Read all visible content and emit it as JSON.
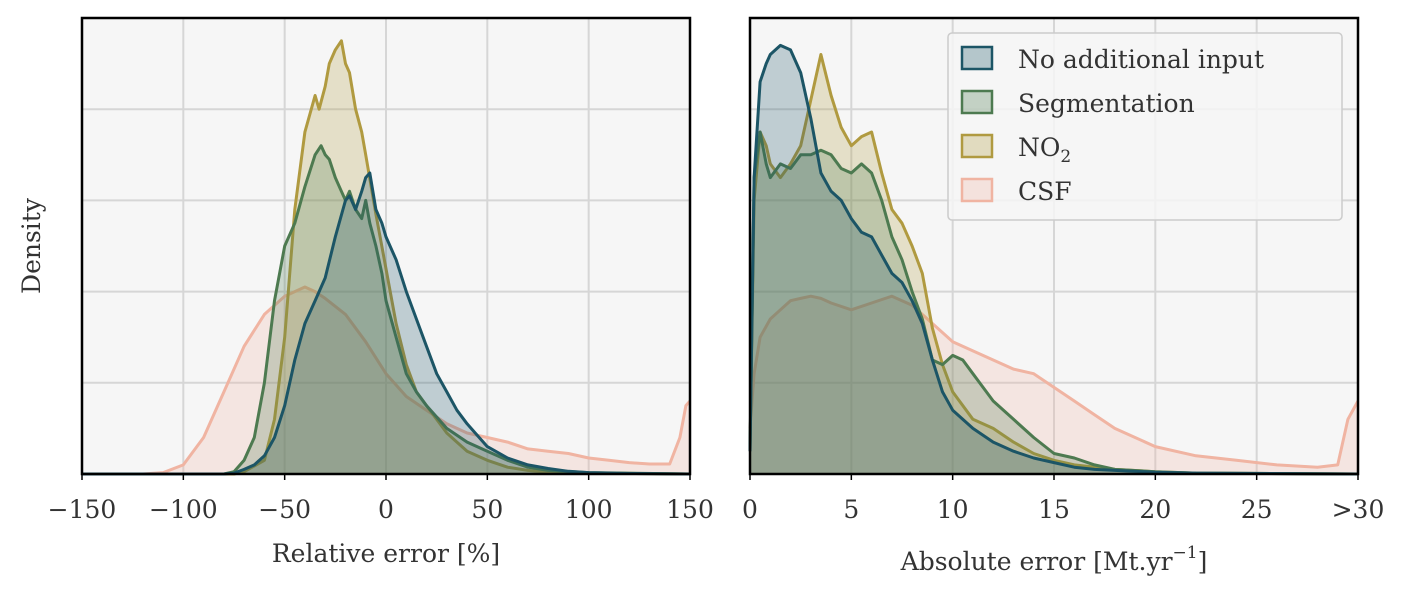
{
  "chart_data": [
    {
      "type": "area",
      "xlabel": "Relative error [%]",
      "ylabel": "Density",
      "xlim": [
        -150,
        150
      ],
      "ylim": [
        0,
        1.0
      ],
      "xticks": [
        -150,
        -100,
        -50,
        0,
        50,
        100,
        150
      ],
      "xtick_labels": [
        "−150",
        "−100",
        "−50",
        "0",
        "50",
        "100",
        "150"
      ],
      "grid": true,
      "series": [
        {
          "key": "csf",
          "color": "#f0b4a2",
          "x": [
            -150,
            -120,
            -110,
            -100,
            -90,
            -80,
            -70,
            -60,
            -50,
            -40,
            -35,
            -30,
            -20,
            -10,
            0,
            10,
            20,
            30,
            40,
            50,
            60,
            70,
            80,
            90,
            100,
            110,
            120,
            130,
            140,
            145,
            148,
            150
          ],
          "y": [
            0,
            0,
            0.003,
            0.02,
            0.08,
            0.18,
            0.28,
            0.35,
            0.39,
            0.41,
            0.4,
            0.385,
            0.35,
            0.29,
            0.22,
            0.17,
            0.14,
            0.11,
            0.09,
            0.08,
            0.07,
            0.055,
            0.05,
            0.045,
            0.035,
            0.03,
            0.025,
            0.022,
            0.022,
            0.08,
            0.15,
            0.16
          ]
        },
        {
          "key": "no2",
          "color": "#b09a40",
          "x": [
            -150,
            -75,
            -70,
            -60,
            -55,
            -50,
            -45,
            -40,
            -35,
            -33,
            -30,
            -28,
            -25,
            -22,
            -20,
            -18,
            -15,
            -12,
            -10,
            -5,
            0,
            5,
            10,
            15,
            20,
            25,
            30,
            35,
            40,
            50,
            60,
            70,
            80,
            100,
            150
          ],
          "y": [
            0,
            0,
            0.005,
            0.03,
            0.12,
            0.3,
            0.58,
            0.75,
            0.83,
            0.8,
            0.85,
            0.9,
            0.93,
            0.95,
            0.9,
            0.88,
            0.8,
            0.75,
            0.7,
            0.57,
            0.45,
            0.33,
            0.24,
            0.18,
            0.15,
            0.12,
            0.09,
            0.07,
            0.05,
            0.03,
            0.015,
            0.008,
            0.004,
            0.002,
            0
          ]
        },
        {
          "key": "seg",
          "color": "#4d7a50",
          "x": [
            -150,
            -80,
            -75,
            -70,
            -65,
            -60,
            -55,
            -50,
            -45,
            -40,
            -35,
            -32,
            -30,
            -28,
            -25,
            -22,
            -20,
            -18,
            -15,
            -12,
            -10,
            -8,
            -5,
            -2,
            0,
            5,
            10,
            15,
            20,
            30,
            40,
            50,
            60,
            70,
            80,
            100,
            150
          ],
          "y": [
            0,
            0,
            0.005,
            0.03,
            0.08,
            0.2,
            0.38,
            0.5,
            0.55,
            0.63,
            0.7,
            0.72,
            0.7,
            0.69,
            0.65,
            0.62,
            0.6,
            0.62,
            0.58,
            0.56,
            0.6,
            0.55,
            0.5,
            0.44,
            0.38,
            0.3,
            0.22,
            0.18,
            0.15,
            0.1,
            0.07,
            0.05,
            0.03,
            0.015,
            0.008,
            0.003,
            0
          ]
        },
        {
          "key": "noinput",
          "color": "#1c5566",
          "x": [
            -150,
            -80,
            -75,
            -70,
            -65,
            -60,
            -55,
            -50,
            -45,
            -40,
            -35,
            -30,
            -25,
            -20,
            -18,
            -15,
            -12,
            -10,
            -8,
            -5,
            -2,
            0,
            5,
            10,
            15,
            20,
            25,
            30,
            35,
            40,
            45,
            50,
            60,
            70,
            80,
            90,
            100,
            120,
            150
          ],
          "y": [
            0,
            0,
            0.002,
            0.01,
            0.02,
            0.04,
            0.08,
            0.15,
            0.25,
            0.33,
            0.38,
            0.43,
            0.52,
            0.6,
            0.61,
            0.58,
            0.62,
            0.65,
            0.66,
            0.58,
            0.55,
            0.52,
            0.47,
            0.4,
            0.34,
            0.28,
            0.22,
            0.18,
            0.14,
            0.11,
            0.085,
            0.06,
            0.035,
            0.02,
            0.012,
            0.006,
            0.003,
            0.001,
            0
          ]
        }
      ]
    },
    {
      "type": "area",
      "xlabel": "Absolute error [Mt.yr",
      "xlabel_sup": "−1",
      "xlabel_suffix": "]",
      "xlim": [
        0,
        30
      ],
      "ylim": [
        0,
        1.0
      ],
      "xticks": [
        0,
        5,
        10,
        15,
        20,
        25,
        30
      ],
      "xtick_labels": [
        "0",
        "5",
        "10",
        "15",
        "20",
        "25",
        ">30"
      ],
      "grid": true,
      "legend_position": "top-right",
      "series": [
        {
          "key": "csf",
          "color": "#f0b4a2",
          "x": [
            0,
            0.2,
            0.5,
            1,
            1.5,
            2,
            2.5,
            3,
            3.5,
            4,
            5,
            6,
            7,
            7.5,
            8,
            9,
            10,
            11,
            12,
            13,
            14,
            15,
            16,
            17,
            18,
            19,
            20,
            22,
            24,
            26,
            28,
            29,
            29.5,
            30
          ],
          "y": [
            0.1,
            0.22,
            0.3,
            0.34,
            0.36,
            0.38,
            0.385,
            0.39,
            0.385,
            0.375,
            0.36,
            0.375,
            0.39,
            0.38,
            0.37,
            0.33,
            0.29,
            0.27,
            0.25,
            0.23,
            0.22,
            0.19,
            0.16,
            0.13,
            0.1,
            0.08,
            0.06,
            0.04,
            0.03,
            0.02,
            0.015,
            0.02,
            0.12,
            0.16
          ]
        },
        {
          "key": "no2",
          "color": "#b09a40",
          "x": [
            0,
            0.2,
            0.5,
            0.8,
            1,
            1.5,
            2,
            2.5,
            3,
            3.5,
            4,
            4.5,
            5,
            5.5,
            6,
            6.5,
            7,
            7.5,
            8,
            8.5,
            9,
            9.5,
            10,
            11,
            12,
            13,
            14,
            15,
            16,
            18,
            20,
            22,
            30
          ],
          "y": [
            0.05,
            0.6,
            0.75,
            0.72,
            0.68,
            0.65,
            0.68,
            0.72,
            0.82,
            0.92,
            0.83,
            0.76,
            0.72,
            0.74,
            0.75,
            0.66,
            0.58,
            0.55,
            0.5,
            0.44,
            0.32,
            0.24,
            0.18,
            0.12,
            0.1,
            0.07,
            0.045,
            0.03,
            0.02,
            0.01,
            0.005,
            0.002,
            0
          ]
        },
        {
          "key": "seg",
          "color": "#4d7a50",
          "x": [
            0,
            0.2,
            0.5,
            0.8,
            1,
            1.5,
            2,
            2.5,
            3,
            3.5,
            4,
            4.5,
            5,
            5.5,
            6,
            6.5,
            7,
            7.5,
            8,
            8.5,
            9,
            9.5,
            10,
            10.5,
            11,
            12,
            13,
            14,
            15,
            16,
            17,
            18,
            20,
            22,
            30
          ],
          "y": [
            0.05,
            0.65,
            0.75,
            0.68,
            0.65,
            0.68,
            0.67,
            0.7,
            0.7,
            0.71,
            0.7,
            0.67,
            0.66,
            0.68,
            0.66,
            0.6,
            0.52,
            0.47,
            0.4,
            0.34,
            0.25,
            0.24,
            0.26,
            0.25,
            0.22,
            0.16,
            0.12,
            0.08,
            0.045,
            0.035,
            0.02,
            0.01,
            0.005,
            0.002,
            0
          ]
        },
        {
          "key": "noinput",
          "color": "#1c5566",
          "x": [
            0,
            0.2,
            0.5,
            0.8,
            1,
            1.5,
            2,
            2.5,
            3,
            3.5,
            4,
            4.5,
            5,
            5.5,
            6,
            6.5,
            7,
            7.5,
            8,
            8.5,
            9,
            9.5,
            10,
            11,
            12,
            13,
            14,
            15,
            16,
            17,
            18,
            20,
            22,
            30
          ],
          "y": [
            0.05,
            0.65,
            0.86,
            0.9,
            0.92,
            0.94,
            0.93,
            0.88,
            0.78,
            0.66,
            0.62,
            0.6,
            0.56,
            0.53,
            0.52,
            0.48,
            0.44,
            0.42,
            0.38,
            0.33,
            0.25,
            0.18,
            0.14,
            0.1,
            0.07,
            0.05,
            0.035,
            0.025,
            0.015,
            0.01,
            0.008,
            0.004,
            0.002,
            0
          ]
        }
      ]
    }
  ],
  "legend": [
    {
      "key": "noinput",
      "label": "No additional input",
      "color": "#1c5566"
    },
    {
      "key": "seg",
      "label": "Segmentation",
      "color": "#4d7a50"
    },
    {
      "key": "no2",
      "label": "NO",
      "sub": "2",
      "color": "#b09a40"
    },
    {
      "key": "csf",
      "label": "CSF",
      "color": "#f0b4a2"
    }
  ]
}
